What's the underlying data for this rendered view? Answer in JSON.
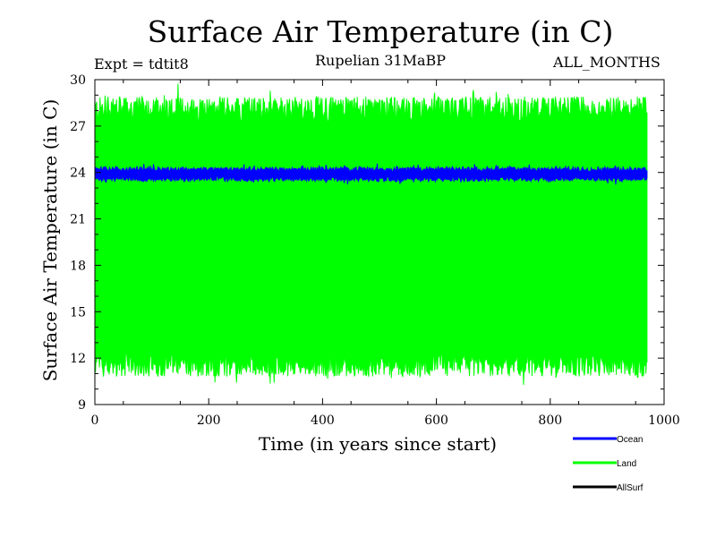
{
  "chart_data": {
    "type": "line",
    "title": "Surface Air Temperature (in C)",
    "experiment": "Expt = tdtit8",
    "subtitle": "Rupelian  31MaBP",
    "season": "ALL_MONTHS",
    "xlabel": "Time (in years since start)",
    "ylabel": "Surface Air Temperature (in C)",
    "xlim": [
      0,
      1000
    ],
    "ylim": [
      9,
      30
    ],
    "xticks": [
      0,
      200,
      400,
      600,
      800,
      1000
    ],
    "yticks": [
      9,
      12,
      15,
      18,
      21,
      24,
      27,
      30
    ],
    "x_end": 970,
    "series": [
      {
        "name": "Land",
        "color": "#00ff00",
        "mean": 19.8,
        "min_approx": 10.5,
        "max_approx": 29.5
      },
      {
        "name": "Ocean",
        "color": "#0000ff",
        "mean": 23.9,
        "min_approx": 23.2,
        "max_approx": 24.6
      },
      {
        "name": "AllSurf",
        "color": "#000000",
        "mean": null
      }
    ],
    "legend": [
      {
        "label": "Ocean",
        "color": "#0000ff"
      },
      {
        "label": "Land",
        "color": "#00ff00"
      },
      {
        "label": "AllSurf",
        "color": "#000000"
      }
    ]
  }
}
